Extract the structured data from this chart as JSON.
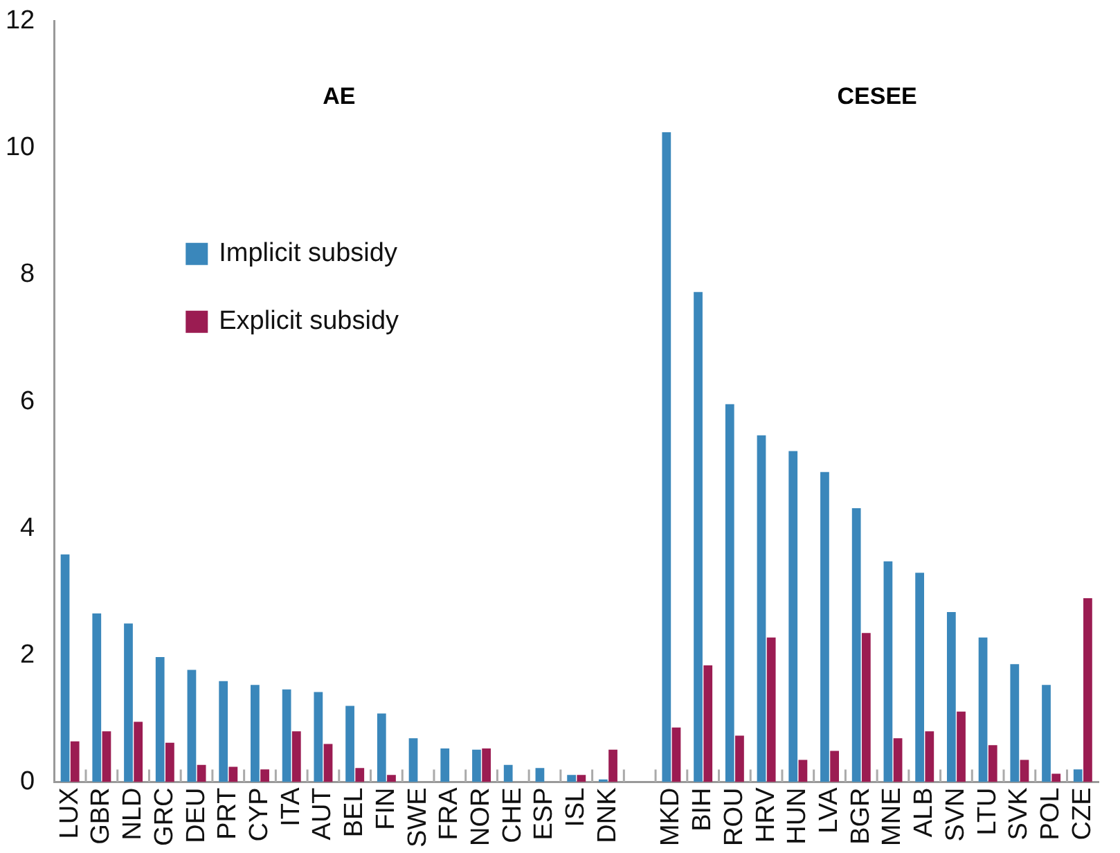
{
  "chart_data": {
    "type": "bar",
    "categories": [
      "LUX",
      "GBR",
      "NLD",
      "GRC",
      "DEU",
      "PRT",
      "CYP",
      "ITA",
      "AUT",
      "BEL",
      "FIN",
      "SWE",
      "FRA",
      "NOR",
      "CHE",
      "ESP",
      "ISL",
      "DNK",
      null,
      "MKD",
      "BIH",
      "ROU",
      "HRV",
      "HUN",
      "LVA",
      "BGR",
      "MNE",
      "ALB",
      "SVN",
      "LTU",
      "SVK",
      "POL",
      "CZE"
    ],
    "series": [
      {
        "name": "Implicit subsidy",
        "color": "#3a87bb",
        "values": [
          3.59,
          2.66,
          2.5,
          1.97,
          1.77,
          1.59,
          1.53,
          1.46,
          1.42,
          1.2,
          1.08,
          0.69,
          0.53,
          0.51,
          0.27,
          0.22,
          0.11,
          0.04,
          null,
          10.25,
          7.73,
          5.96,
          5.47,
          5.22,
          4.89,
          4.32,
          3.48,
          3.3,
          2.68,
          2.28,
          1.86,
          1.53,
          0.2
        ]
      },
      {
        "name": "Explicit subsidy",
        "color": "#9b1c52",
        "values": [
          0.64,
          0.8,
          0.95,
          0.62,
          0.27,
          0.24,
          0.2,
          0.8,
          0.6,
          0.22,
          0.11,
          null,
          null,
          0.53,
          null,
          null,
          0.11,
          0.51,
          null,
          0.86,
          1.84,
          0.73,
          2.28,
          0.35,
          0.49,
          2.35,
          0.69,
          0.8,
          1.11,
          0.58,
          0.35,
          0.13,
          2.9
        ]
      }
    ],
    "ylim": [
      0,
      12
    ],
    "yticks": [
      0,
      2,
      4,
      6,
      8,
      10,
      12
    ],
    "grid": false,
    "legend": "center left",
    "annotations": [
      "AE",
      "CESEE"
    ]
  }
}
